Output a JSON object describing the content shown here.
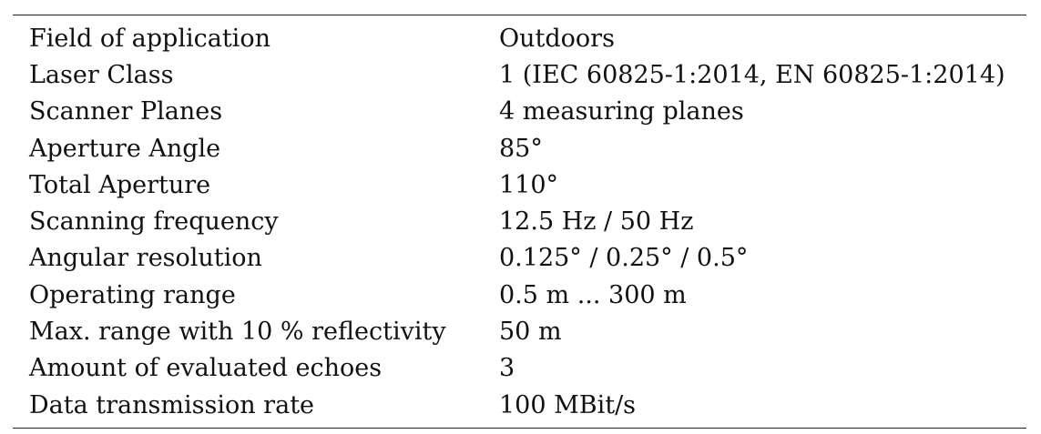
{
  "table": {
    "rows": [
      {
        "label": "Field of application",
        "value": "Outdoors"
      },
      {
        "label": "Laser Class",
        "value": "1 (IEC 60825-1:2014, EN 60825-1:2014)"
      },
      {
        "label": "Scanner Planes",
        "value": "4 measuring planes"
      },
      {
        "label": "Aperture Angle",
        "value": "85°"
      },
      {
        "label": "Total Aperture",
        "value": "110°"
      },
      {
        "label": "Scanning frequency",
        "value": "12.5 Hz / 50 Hz"
      },
      {
        "label": "Angular resolution",
        "value": "0.125° / 0.25° / 0.5°"
      },
      {
        "label": "Operating range",
        "value": "0.5 m ... 300 m"
      },
      {
        "label": "Max. range with 10 % reflectivity",
        "value": "50 m"
      },
      {
        "label": "Amount of evaluated echoes",
        "value": "3"
      },
      {
        "label": "Data transmission rate",
        "value": "100 MBit/s"
      }
    ]
  }
}
